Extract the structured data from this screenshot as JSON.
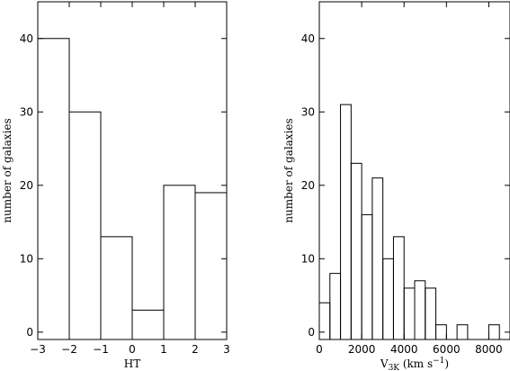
{
  "chart_data": [
    {
      "type": "bar",
      "xlabel": "HT",
      "ylabel": "number of galaxies",
      "xlim": [
        -3,
        3
      ],
      "ylim": [
        -1,
        45
      ],
      "x_ticks": [
        -3,
        -2,
        -1,
        0,
        1,
        2,
        3
      ],
      "y_ticks": [
        0,
        10,
        20,
        30,
        40
      ],
      "bin_edges": [
        -3,
        -2,
        -1,
        0,
        1,
        2,
        3
      ],
      "values": [
        40,
        30,
        13,
        3,
        20,
        19
      ]
    },
    {
      "type": "bar",
      "xlabel": "V3K (km s−1)",
      "xlabel_parts": {
        "v": "V",
        "sub": "3K",
        "mid": " (km s",
        "sup": "−1",
        "end": ")"
      },
      "ylabel": "number of galaxies",
      "xlim": [
        0,
        9000
      ],
      "ylim": [
        -1,
        45
      ],
      "x_ticks": [
        0,
        2000,
        4000,
        6000,
        8000
      ],
      "y_ticks": [
        0,
        10,
        20,
        30,
        40
      ],
      "bin_width": 500,
      "bin_start": 0,
      "values": [
        4,
        8,
        31,
        23,
        16,
        21,
        10,
        13,
        6,
        7,
        6,
        1,
        0,
        1,
        0,
        0,
        1
      ]
    }
  ]
}
